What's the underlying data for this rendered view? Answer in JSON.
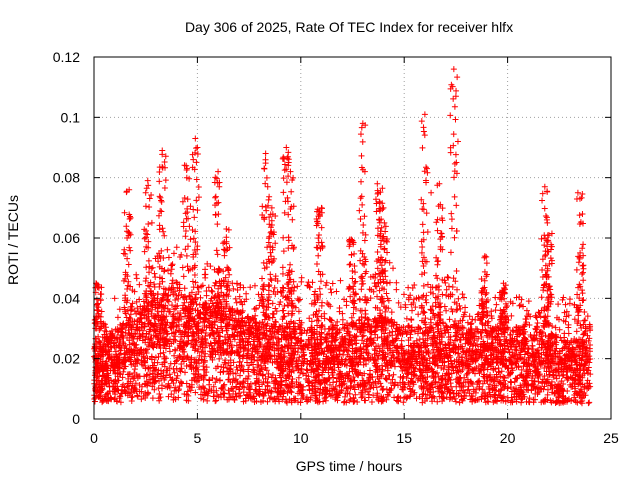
{
  "chart_data": {
    "type": "scatter",
    "title": "Day 306 of 2025, Rate Of TEC Index for receiver hlfx",
    "xlabel": "GPS time / hours",
    "ylabel": "ROTI / TECUs",
    "xlim": [
      0,
      25
    ],
    "ylim": [
      0,
      0.12
    ],
    "xticks": [
      0,
      5,
      10,
      15,
      20,
      25
    ],
    "yticks": [
      0,
      0.02,
      0.04,
      0.06,
      0.08,
      0.1,
      0.12
    ],
    "ytick_labels": [
      "0",
      "0.02",
      "0.04",
      "0.06",
      "0.08",
      "0.1",
      "0.12"
    ],
    "xtick_labels": [
      "0",
      "5",
      "10",
      "15",
      "20",
      "25"
    ],
    "grid": true,
    "marker": "+",
    "color": "#ff0000",
    "series": [
      {
        "x": [
          0.1,
          0.2,
          0.3,
          0.5,
          1.0,
          1.6,
          1.7,
          2.5,
          2.6,
          2.8,
          3.2,
          3.3,
          4.3,
          4.5,
          4.8,
          4.9,
          5.0,
          6.0,
          6.4,
          8.3,
          8.4,
          8.6,
          9.3,
          9.5,
          10.9,
          11.0,
          12.5,
          13.0,
          13.1,
          13.7,
          13.8,
          14.0,
          16.0,
          16.1,
          16.3,
          16.7,
          17.4,
          17.5,
          17.6,
          18.9,
          19.8,
          21.8,
          21.9,
          22.0,
          23.4,
          23.5
        ],
        "y": [
          0.045,
          0.036,
          0.03,
          0.028,
          0.04,
          0.06,
          0.076,
          0.075,
          0.079,
          0.065,
          0.069,
          0.089,
          0.072,
          0.083,
          0.086,
          0.093,
          0.09,
          0.082,
          0.063,
          0.088,
          0.077,
          0.07,
          0.09,
          0.082,
          0.069,
          0.07,
          0.059,
          0.098,
          0.082,
          0.078,
          0.072,
          0.07,
          0.101,
          0.083,
          0.075,
          0.078,
          0.116,
          0.107,
          0.092,
          0.054,
          0.045,
          0.077,
          0.066,
          0.061,
          0.075,
          0.073
        ]
      }
    ],
    "background_band": {
      "x_start": 0.0,
      "x_end": 24.0,
      "center_profile": [
        [
          0.0,
          0.016
        ],
        [
          1.0,
          0.017
        ],
        [
          2.0,
          0.021
        ],
        [
          3.0,
          0.024
        ],
        [
          4.0,
          0.025
        ],
        [
          5.0,
          0.023
        ],
        [
          6.0,
          0.022
        ],
        [
          7.0,
          0.021
        ],
        [
          8.0,
          0.019
        ],
        [
          9.0,
          0.018
        ],
        [
          10.0,
          0.018
        ],
        [
          11.0,
          0.018
        ],
        [
          12.0,
          0.018
        ],
        [
          13.0,
          0.019
        ],
        [
          14.0,
          0.02
        ],
        [
          15.0,
          0.018
        ],
        [
          16.0,
          0.018
        ],
        [
          17.0,
          0.019
        ],
        [
          18.0,
          0.018
        ],
        [
          19.0,
          0.018
        ],
        [
          20.0,
          0.018
        ],
        [
          21.0,
          0.018
        ],
        [
          22.0,
          0.017
        ],
        [
          23.0,
          0.016
        ],
        [
          24.0,
          0.016
        ]
      ],
      "upper_profile": [
        [
          0.0,
          0.03
        ],
        [
          1.0,
          0.034
        ],
        [
          2.0,
          0.048
        ],
        [
          3.0,
          0.055
        ],
        [
          4.0,
          0.06
        ],
        [
          5.0,
          0.055
        ],
        [
          6.0,
          0.05
        ],
        [
          7.0,
          0.045
        ],
        [
          8.0,
          0.045
        ],
        [
          9.0,
          0.048
        ],
        [
          10.0,
          0.047
        ],
        [
          11.0,
          0.047
        ],
        [
          12.0,
          0.046
        ],
        [
          13.0,
          0.048
        ],
        [
          14.0,
          0.055
        ],
        [
          15.0,
          0.045
        ],
        [
          16.0,
          0.045
        ],
        [
          17.0,
          0.048
        ],
        [
          18.0,
          0.04
        ],
        [
          19.0,
          0.04
        ],
        [
          20.0,
          0.042
        ],
        [
          21.0,
          0.04
        ],
        [
          22.0,
          0.042
        ],
        [
          23.0,
          0.04
        ],
        [
          24.0,
          0.035
        ]
      ],
      "lower_floor": 0.004
    }
  }
}
